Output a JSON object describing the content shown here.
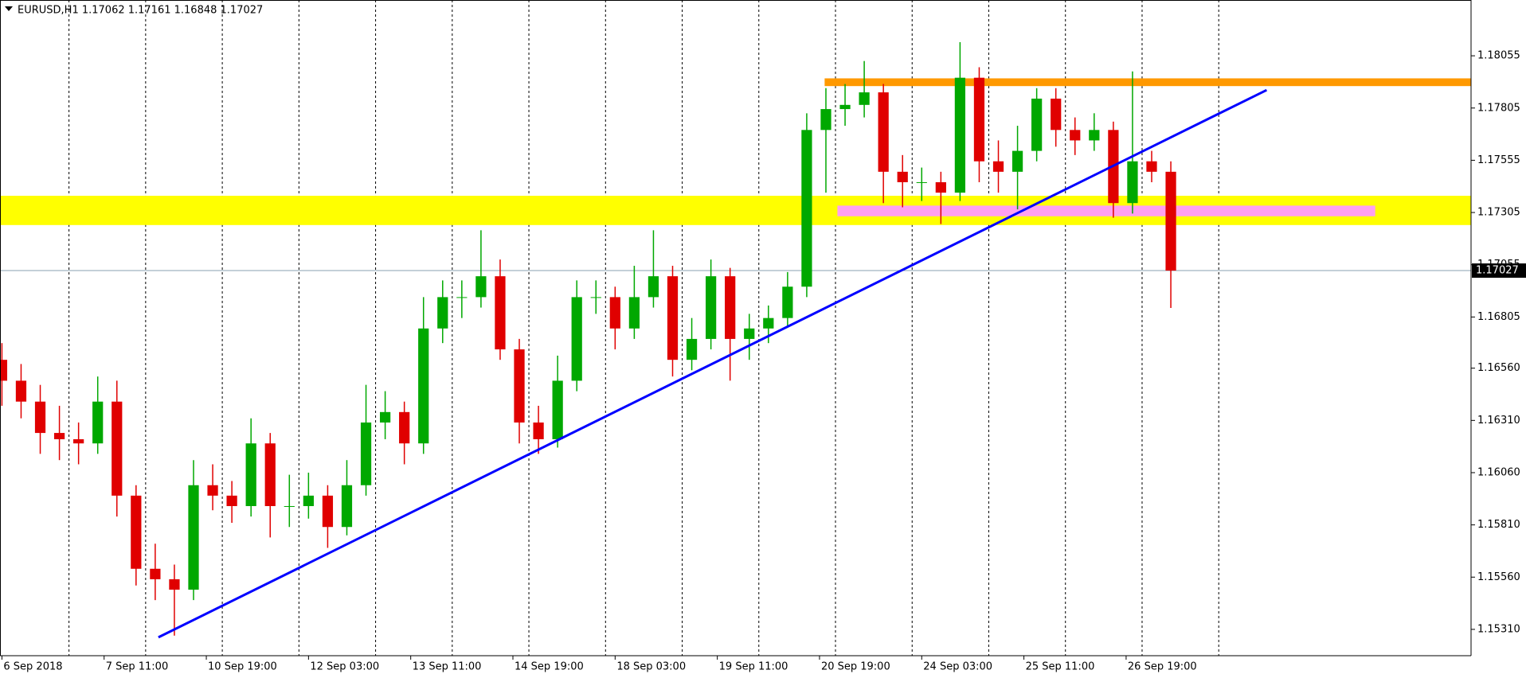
{
  "chart_data": {
    "type": "candlestick",
    "title": "EURUSD,H1  1.17062 1.17161 1.16848 1.17027",
    "current_price": 1.17027,
    "up_color": "#00a800",
    "down_color": "#e00000",
    "xlim": [
      -0.6,
      460
    ],
    "ylim": [
      1.15184,
      1.18322
    ],
    "xticks": [
      {
        "value": 0,
        "label": "6 Sep 2018"
      },
      {
        "value": 32,
        "label": "7 Sep 11:00"
      },
      {
        "value": 64,
        "label": "10 Sep 19:00"
      },
      {
        "value": 96,
        "label": "12 Sep 03:00"
      },
      {
        "value": 128,
        "label": "13 Sep 11:00"
      },
      {
        "value": 160,
        "label": "14 Sep 19:00"
      },
      {
        "value": 192,
        "label": "18 Sep 03:00"
      },
      {
        "value": 224,
        "label": "19 Sep 11:00"
      },
      {
        "value": 256,
        "label": "20 Sep 19:00"
      },
      {
        "value": 288,
        "label": "24 Sep 03:00"
      },
      {
        "value": 320,
        "label": "25 Sep 11:00"
      },
      {
        "value": 352,
        "label": "26 Sep 19:00"
      }
    ],
    "xgrid": [
      21,
      45,
      69,
      93,
      117,
      141,
      165,
      189,
      213,
      237,
      261,
      285,
      309,
      333,
      357,
      381
    ],
    "yticks": [
      {
        "value": 1.1531,
        "label": "1.15310"
      },
      {
        "value": 1.1556,
        "label": "1.15560"
      },
      {
        "value": 1.1581,
        "label": "1.15810"
      },
      {
        "value": 1.1606,
        "label": "1.16060"
      },
      {
        "value": 1.1631,
        "label": "1.16310"
      },
      {
        "value": 1.1656,
        "label": "1.16560"
      },
      1.16805,
      1.17055,
      1.17305,
      1.17555,
      1.17805,
      1.18055
    ],
    "zones": [
      {
        "color": "#ffff00",
        "y": [
          1.17245,
          1.17385
        ]
      },
      {
        "color": "#ff9900",
        "y": [
          1.1791,
          1.17947
        ],
        "x": [
          257.6,
          460
        ]
      },
      {
        "color": "#ffa0f0",
        "y": [
          1.17287,
          1.17338
        ],
        "x": [
          261.6,
          430
        ]
      }
    ],
    "trendline": {
      "color": "#0000ff",
      "x": [
        49,
        396
      ],
      "y": [
        1.15272,
        1.17891
      ]
    },
    "candles": {
      "x": [
        0,
        6,
        12,
        18,
        24,
        30,
        36,
        42,
        48,
        54,
        60,
        66,
        72,
        78,
        84,
        90,
        96,
        102,
        108,
        114,
        120,
        126,
        132,
        138,
        144,
        150,
        156,
        162,
        168,
        174,
        180,
        186,
        192,
        198,
        204,
        210,
        216,
        222,
        228,
        234,
        240,
        246,
        252,
        258,
        264,
        270,
        276,
        282,
        288,
        294,
        300,
        306,
        312,
        318,
        324,
        330,
        336,
        342,
        348,
        354,
        360,
        366
      ],
      "open": [
        1.166,
        1.165,
        1.164,
        1.1625,
        1.1622,
        1.162,
        1.164,
        1.1595,
        1.156,
        1.1555,
        1.155,
        1.16,
        1.1595,
        1.159,
        1.162,
        1.159,
        1.159,
        1.1595,
        1.158,
        1.16,
        1.163,
        1.1635,
        1.162,
        1.1675,
        1.169,
        1.169,
        1.17,
        1.1665,
        1.163,
        1.1622,
        1.165,
        1.169,
        1.169,
        1.1675,
        1.169,
        1.17,
        1.166,
        1.167,
        1.17,
        1.167,
        1.1675,
        1.168,
        1.1695,
        1.177,
        1.178,
        1.1782,
        1.1788,
        1.175,
        1.1745,
        1.1745,
        1.174,
        1.1795,
        1.1755,
        1.175,
        1.176,
        1.1785,
        1.177,
        1.1765,
        1.177,
        1.1735,
        1.1755,
        1.175
      ],
      "high": [
        1.1668,
        1.1658,
        1.1648,
        1.1638,
        1.163,
        1.1652,
        1.165,
        1.16,
        1.1572,
        1.1562,
        1.1612,
        1.161,
        1.1602,
        1.1632,
        1.1625,
        1.1605,
        1.1606,
        1.16,
        1.1612,
        1.1648,
        1.1645,
        1.164,
        1.169,
        1.1698,
        1.1698,
        1.1722,
        1.1708,
        1.167,
        1.1638,
        1.1662,
        1.1698,
        1.1698,
        1.1695,
        1.1705,
        1.1722,
        1.1705,
        1.168,
        1.1708,
        1.1704,
        1.1682,
        1.1686,
        1.1702,
        1.1778,
        1.179,
        1.1792,
        1.1803,
        1.1792,
        1.1758,
        1.1752,
        1.175,
        1.1812,
        1.18,
        1.1765,
        1.1772,
        1.179,
        1.179,
        1.1776,
        1.1778,
        1.1774,
        1.1798,
        1.176,
        1.1755
      ],
      "low": [
        1.1638,
        1.1632,
        1.1615,
        1.1612,
        1.161,
        1.1615,
        1.1585,
        1.1552,
        1.1545,
        1.1528,
        1.1545,
        1.1588,
        1.1582,
        1.1585,
        1.1575,
        1.158,
        1.1584,
        1.157,
        1.1576,
        1.1595,
        1.1622,
        1.161,
        1.1615,
        1.1668,
        1.168,
        1.1685,
        1.166,
        1.162,
        1.1615,
        1.1618,
        1.1645,
        1.1682,
        1.1665,
        1.167,
        1.1685,
        1.1652,
        1.1655,
        1.1665,
        1.165,
        1.166,
        1.1668,
        1.1676,
        1.169,
        1.174,
        1.1772,
        1.1776,
        1.1735,
        1.1733,
        1.1736,
        1.1725,
        1.1736,
        1.1745,
        1.174,
        1.1732,
        1.1755,
        1.1762,
        1.1758,
        1.176,
        1.1728,
        1.173,
        1.1745,
        1.16848
      ],
      "close": [
        1.165,
        1.164,
        1.1625,
        1.1622,
        1.162,
        1.164,
        1.1595,
        1.156,
        1.1555,
        1.155,
        1.16,
        1.1595,
        1.159,
        1.162,
        1.159,
        1.159,
        1.1595,
        1.158,
        1.16,
        1.163,
        1.1635,
        1.162,
        1.1675,
        1.169,
        1.169,
        1.17,
        1.1665,
        1.163,
        1.1622,
        1.165,
        1.169,
        1.169,
        1.1675,
        1.169,
        1.17,
        1.166,
        1.167,
        1.17,
        1.167,
        1.1675,
        1.168,
        1.1695,
        1.177,
        1.178,
        1.1782,
        1.1788,
        1.175,
        1.1745,
        1.1745,
        1.174,
        1.1795,
        1.1755,
        1.175,
        1.176,
        1.1785,
        1.177,
        1.1765,
        1.177,
        1.1735,
        1.1755,
        1.175,
        1.17027
      ]
    }
  }
}
